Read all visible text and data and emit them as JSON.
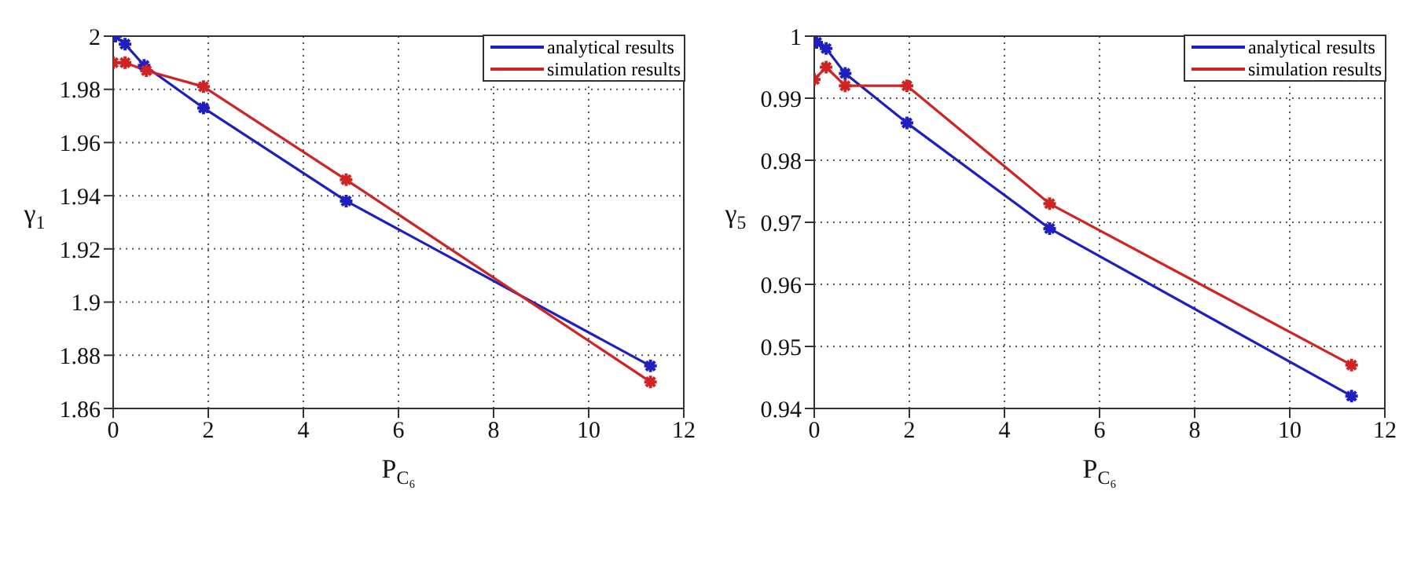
{
  "chart_data": [
    {
      "type": "line",
      "xlabel": "P$_{C₆}$",
      "ylabel": "γ$_{1}$",
      "xlim": [
        0,
        12
      ],
      "xticks": [
        0,
        2,
        4,
        6,
        8,
        10,
        12
      ],
      "ylim": [
        1.86,
        2
      ],
      "yticks": [
        1.86,
        1.88,
        1.9,
        1.92,
        1.94,
        1.96,
        1.98,
        2
      ],
      "grid": true,
      "legend": "top right",
      "marker": "cross",
      "line_style": "solid",
      "series": [
        {
          "name": "analytical results",
          "color": "#1f1fbf",
          "x": [
            0.05,
            0.25,
            0.65,
            1.9,
            4.9,
            11.3
          ],
          "values": [
            2.0,
            1.997,
            1.989,
            1.973,
            1.938,
            1.876
          ]
        },
        {
          "name": "simulation results",
          "color": "#d02424",
          "x": [
            0.0,
            0.25,
            0.7,
            1.9,
            4.9,
            11.3
          ],
          "values": [
            1.99,
            1.99,
            1.987,
            1.981,
            1.946,
            1.87
          ]
        }
      ]
    },
    {
      "type": "line",
      "xlabel": "P$_{C₆}$",
      "ylabel": "γ$_{5}$",
      "xlim": [
        0,
        12
      ],
      "xticks": [
        0,
        2,
        4,
        6,
        8,
        10,
        12
      ],
      "ylim": [
        0.94,
        1
      ],
      "yticks": [
        0.94,
        0.95,
        0.96,
        0.97,
        0.98,
        0.99,
        1
      ],
      "grid": true,
      "legend": "top right",
      "marker": "cross",
      "line_style": "solid",
      "series": [
        {
          "name": "analytical results",
          "color": "#1f1fbf",
          "x": [
            0.05,
            0.25,
            0.65,
            1.95,
            4.95,
            11.3
          ],
          "values": [
            0.999,
            0.998,
            0.994,
            0.986,
            0.969,
            0.942
          ]
        },
        {
          "name": "simulation results",
          "color": "#d02424",
          "x": [
            0.0,
            0.25,
            0.65,
            1.95,
            4.95,
            11.3
          ],
          "values": [
            0.993,
            0.995,
            0.992,
            0.992,
            0.973,
            0.947
          ]
        }
      ]
    }
  ]
}
